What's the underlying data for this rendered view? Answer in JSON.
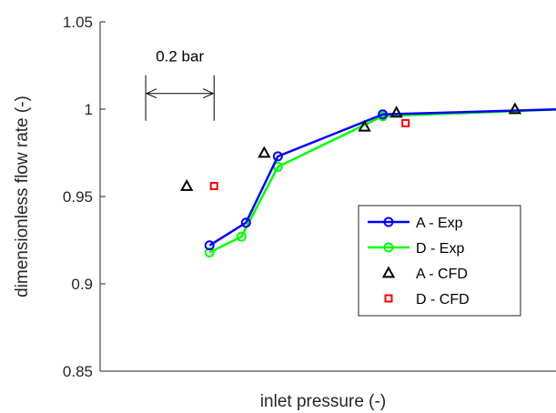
{
  "chart_data": {
    "type": "line",
    "xlabel": "inlet pressure (-)",
    "ylabel": "dimensionless flow rate (-)",
    "ylim": [
      0.85,
      1.05
    ],
    "xlim": [
      0,
      1
    ],
    "yticks": [
      "0.85",
      "0.9",
      "0.95",
      "1",
      "1.05"
    ],
    "grid": false,
    "legend_position": "lower-right",
    "series": [
      {
        "name": "A - Exp",
        "color": "#0000ff",
        "marker": "circle",
        "line": true,
        "x": [
          0.24,
          0.32,
          0.39,
          0.62,
          1.02
        ],
        "y": [
          0.922,
          0.935,
          0.973,
          0.997,
          1.0
        ]
      },
      {
        "name": "D - Exp",
        "color": "#00ff00",
        "marker": "circle",
        "line": true,
        "x": [
          0.24,
          0.31,
          0.39,
          0.62,
          1.02
        ],
        "y": [
          0.918,
          0.927,
          0.967,
          0.996,
          1.0
        ]
      },
      {
        "name": "A - CFD",
        "color": "#000000",
        "marker": "triangle",
        "line": false,
        "x": [
          0.19,
          0.36,
          0.58,
          0.65,
          0.91
        ],
        "y": [
          0.956,
          0.975,
          0.99,
          0.998,
          1.0
        ]
      },
      {
        "name": "D - CFD",
        "color": "#ff0000",
        "marker": "square",
        "line": false,
        "x": [
          0.25,
          0.67
        ],
        "y": [
          0.956,
          0.992
        ]
      }
    ],
    "annotation": {
      "text": "0.2 bar",
      "x_start": 0.1,
      "x_end": 0.25,
      "y": 1.009
    }
  }
}
